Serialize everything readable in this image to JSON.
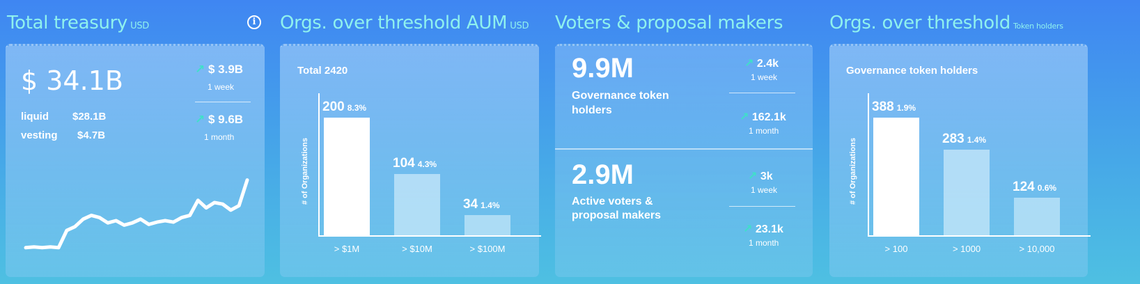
{
  "treasury": {
    "title": "Total treasury",
    "unit": "USD",
    "info_icon": "info-icon",
    "total": "$ 34.1B",
    "liquid_label": "liquid",
    "liquid_value": "$28.1B",
    "vesting_label": "vesting",
    "vesting_value": "$4.7B",
    "change_week": "$ 3.9B",
    "change_week_period": "1 week",
    "change_month": "$ 9.6B",
    "change_month_period": "1 month",
    "sparkline": [
      0.02,
      0.03,
      0.02,
      0.03,
      0.02,
      0.25,
      0.3,
      0.4,
      0.45,
      0.42,
      0.35,
      0.38,
      0.32,
      0.35,
      0.4,
      0.33,
      0.36,
      0.38,
      0.36,
      0.42,
      0.45,
      0.65,
      0.55,
      0.62,
      0.6,
      0.52,
      0.58,
      0.92
    ]
  },
  "aum": {
    "title": "Orgs. over threshold AUM",
    "unit": "USD",
    "total": "Total 2420",
    "y_label": "# of Organizations",
    "chart_data": {
      "type": "bar",
      "categories": [
        "> $1M",
        "> $10M",
        "> $100M"
      ],
      "values": [
        200,
        104,
        34
      ],
      "value_labels": [
        "200",
        "104",
        "34"
      ],
      "percent_labels": [
        "8.3%",
        "4.3%",
        "1.4%"
      ],
      "ylim": [
        0,
        200
      ]
    }
  },
  "voters": {
    "title": "Voters & proposal makers",
    "holders_value": "9.9M",
    "holders_label_1": "Governance token",
    "holders_label_2": "holders",
    "holders_week": "2.4k",
    "holders_week_period": "1 week",
    "holders_month": "162.1k",
    "holders_month_period": "1 month",
    "active_value": "2.9M",
    "active_label_1": "Active voters &",
    "active_label_2": "proposal makers",
    "active_week": "3k",
    "active_week_period": "1 week",
    "active_month": "23.1k",
    "active_month_period": "1 month"
  },
  "holders": {
    "title": "Orgs. over threshold",
    "unit": "Token holders",
    "subtitle": "Governance token holders",
    "y_label": "# of Organizations",
    "chart_data": {
      "type": "bar",
      "categories": [
        "> 100",
        "> 1000",
        "> 10,000"
      ],
      "values": [
        388,
        283,
        124
      ],
      "value_labels": [
        "388",
        "283",
        "124"
      ],
      "percent_labels": [
        "1.9%",
        "1.4%",
        "0.6%"
      ],
      "ylim": [
        0,
        388
      ]
    }
  },
  "arrow_glyph": "↗"
}
